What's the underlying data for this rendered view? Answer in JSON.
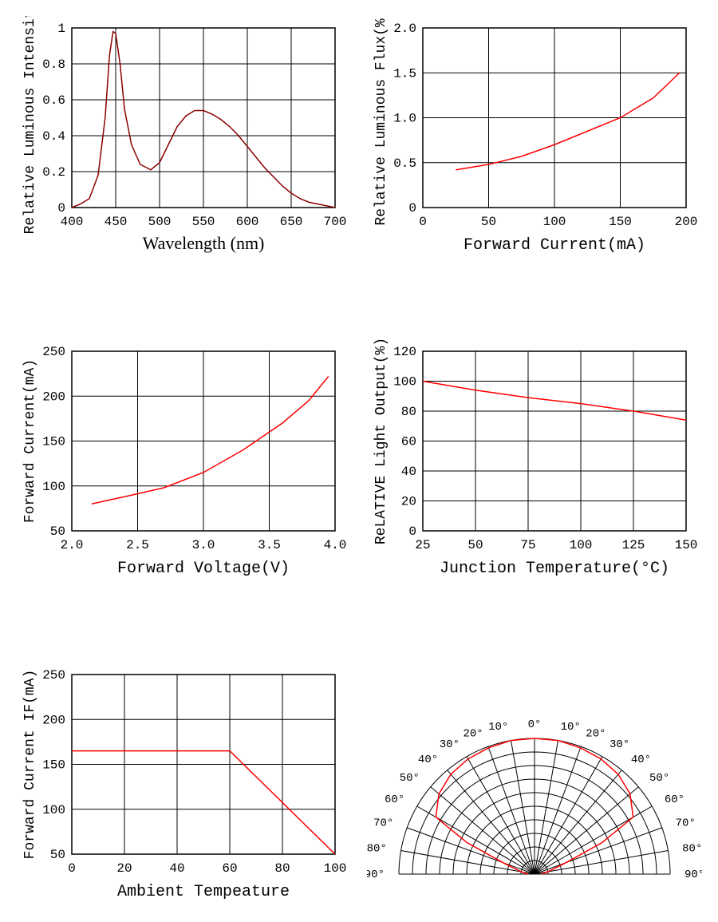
{
  "charts": {
    "spectrum": {
      "type": "line",
      "xlabel": "Wavelength (nm)",
      "ylabel": "Relative Luminous Intensity",
      "xlim": [
        400,
        700
      ],
      "ylim": [
        0,
        1.0
      ],
      "xticks": [
        400,
        450,
        500,
        550,
        600,
        650,
        700
      ],
      "yticks": [
        0.0,
        0.2,
        0.4,
        0.6,
        0.8,
        1.0
      ],
      "line_color": "#8b0000",
      "grid_color": "#000000",
      "background_color": "#ffffff",
      "data": [
        [
          400,
          0.0
        ],
        [
          410,
          0.02
        ],
        [
          420,
          0.05
        ],
        [
          430,
          0.18
        ],
        [
          438,
          0.5
        ],
        [
          443,
          0.85
        ],
        [
          447,
          0.98
        ],
        [
          450,
          0.97
        ],
        [
          455,
          0.8
        ],
        [
          460,
          0.55
        ],
        [
          468,
          0.35
        ],
        [
          478,
          0.24
        ],
        [
          490,
          0.21
        ],
        [
          500,
          0.25
        ],
        [
          510,
          0.35
        ],
        [
          520,
          0.45
        ],
        [
          530,
          0.51
        ],
        [
          540,
          0.54
        ],
        [
          550,
          0.54
        ],
        [
          560,
          0.52
        ],
        [
          570,
          0.49
        ],
        [
          580,
          0.45
        ],
        [
          590,
          0.4
        ],
        [
          600,
          0.34
        ],
        [
          610,
          0.28
        ],
        [
          620,
          0.22
        ],
        [
          630,
          0.17
        ],
        [
          640,
          0.12
        ],
        [
          650,
          0.08
        ],
        [
          660,
          0.05
        ],
        [
          670,
          0.03
        ],
        [
          680,
          0.02
        ],
        [
          690,
          0.01
        ],
        [
          700,
          0.0
        ]
      ],
      "xlabel_font": "serif"
    },
    "flux": {
      "type": "line",
      "xlabel": "Forward Current(mA)",
      "ylabel": "Relative Luminous Flux(%)",
      "xlim": [
        0,
        200
      ],
      "ylim": [
        0,
        2.0
      ],
      "xticks": [
        0,
        50,
        100,
        150,
        200
      ],
      "yticks": [
        0,
        0.5,
        1.0,
        1.5,
        2.0
      ],
      "ytick_labels": [
        "0",
        "0.5",
        "1.0",
        "1.5",
        "2.0"
      ],
      "line_color": "#ff0000",
      "grid_color": "#000000",
      "data": [
        [
          25,
          0.42
        ],
        [
          50,
          0.48
        ],
        [
          75,
          0.57
        ],
        [
          100,
          0.7
        ],
        [
          125,
          0.85
        ],
        [
          150,
          1.0
        ],
        [
          175,
          1.22
        ],
        [
          195,
          1.5
        ]
      ]
    },
    "iv": {
      "type": "line",
      "xlabel": "Forward Voltage(V)",
      "ylabel": "Forward Current(mA)",
      "xlim": [
        2.0,
        4.0
      ],
      "ylim": [
        50,
        250
      ],
      "xticks": [
        2.0,
        2.5,
        3.0,
        3.5,
        4.0
      ],
      "xtick_labels": [
        "2.0",
        "2.5",
        "3.0",
        "3.5",
        "4.0"
      ],
      "yticks": [
        50,
        100,
        150,
        200,
        250
      ],
      "line_color": "#ff0000",
      "grid_color": "#000000",
      "data": [
        [
          2.15,
          80
        ],
        [
          2.4,
          88
        ],
        [
          2.7,
          98
        ],
        [
          3.0,
          115
        ],
        [
          3.3,
          140
        ],
        [
          3.6,
          170
        ],
        [
          3.8,
          195
        ],
        [
          3.95,
          222
        ]
      ]
    },
    "thermal": {
      "type": "line",
      "xlabel": "Junction Temperature(°C)",
      "ylabel": "ReLATIVE Light Output(%)",
      "xlim": [
        25,
        150
      ],
      "ylim": [
        0,
        120
      ],
      "xticks": [
        25,
        50,
        75,
        100,
        125,
        150
      ],
      "yticks": [
        0,
        20,
        40,
        60,
        80,
        100,
        120
      ],
      "line_color": "#ff0000",
      "grid_color": "#000000",
      "data": [
        [
          25,
          100
        ],
        [
          50,
          94
        ],
        [
          75,
          89
        ],
        [
          100,
          85
        ],
        [
          125,
          80
        ],
        [
          150,
          74
        ]
      ]
    },
    "derate": {
      "type": "line",
      "xlabel": "Ambient Tempeature",
      "ylabel": "Forward Current IF(mA)",
      "xlim": [
        0,
        100
      ],
      "ylim": [
        50,
        250
      ],
      "xticks": [
        0,
        20,
        40,
        60,
        80,
        100
      ],
      "yticks": [
        50,
        100,
        150,
        200,
        250
      ],
      "line_color": "#ff0000",
      "grid_color": "#000000",
      "data": [
        [
          0,
          165
        ],
        [
          60,
          165
        ],
        [
          100,
          50
        ]
      ]
    },
    "polar": {
      "type": "polar",
      "angles_deg": [
        0,
        10,
        20,
        30,
        40,
        50,
        60,
        70,
        80,
        90
      ],
      "rings": 10,
      "line_color": "#ff0000",
      "grid_color": "#000000",
      "data_deg_r": [
        [
          -90,
          0.05
        ],
        [
          -80,
          0.1
        ],
        [
          -70,
          0.25
        ],
        [
          -65,
          0.55
        ],
        [
          -60,
          0.84
        ],
        [
          -50,
          0.92
        ],
        [
          -40,
          0.96
        ],
        [
          -30,
          0.98
        ],
        [
          -20,
          0.99
        ],
        [
          -10,
          1.0
        ],
        [
          0,
          1.0
        ],
        [
          10,
          1.0
        ],
        [
          20,
          0.99
        ],
        [
          30,
          0.98
        ],
        [
          40,
          0.96
        ],
        [
          50,
          0.92
        ],
        [
          60,
          0.84
        ],
        [
          65,
          0.55
        ],
        [
          70,
          0.25
        ],
        [
          80,
          0.1
        ],
        [
          90,
          0.05
        ]
      ],
      "angle_labels": [
        "0°",
        "10°",
        "20°",
        "30°",
        "40°",
        "50°",
        "60°",
        "70°",
        "80°",
        "90°"
      ]
    }
  }
}
